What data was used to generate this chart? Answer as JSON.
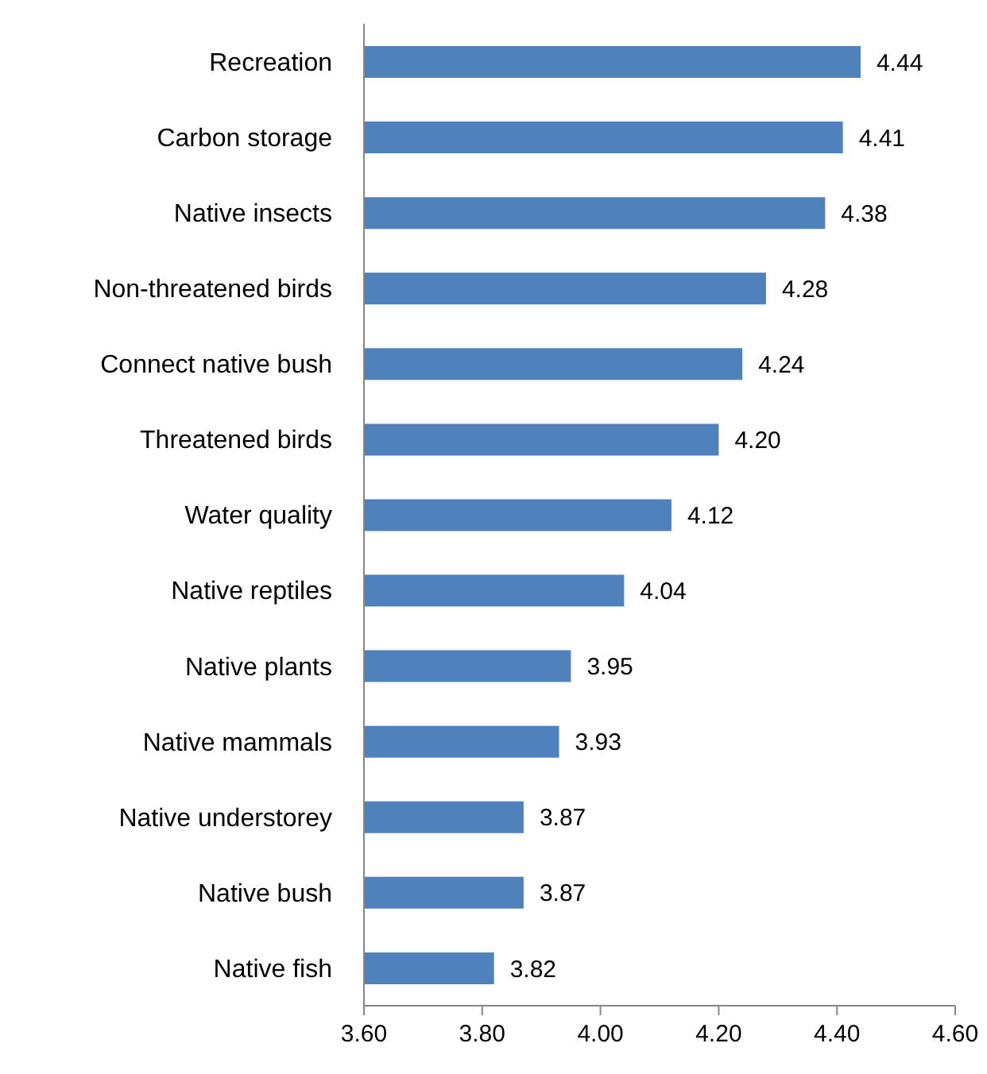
{
  "chart_data": {
    "type": "bar",
    "orientation": "horizontal",
    "categories": [
      "Recreation",
      "Carbon storage",
      "Native insects",
      "Non-threatened birds",
      "Connect native bush",
      "Threatened birds",
      "Water quality",
      "Native reptiles",
      "Native plants",
      "Native mammals",
      "Native understorey",
      "Native bush",
      "Native fish"
    ],
    "values": [
      4.44,
      4.41,
      4.38,
      4.28,
      4.24,
      4.2,
      4.12,
      4.04,
      3.95,
      3.93,
      3.87,
      3.87,
      3.82
    ],
    "value_labels": [
      "4.44",
      "4.41",
      "4.38",
      "4.28",
      "4.24",
      "4.20",
      "4.12",
      "4.04",
      "3.95",
      "3.93",
      "3.87",
      "3.87",
      "3.82"
    ],
    "color": "#4f81bd",
    "xlim": [
      3.6,
      4.6
    ],
    "xticks": [
      {
        "value": 3.6,
        "label": "3.60"
      },
      {
        "value": 3.8,
        "label": "3.80"
      },
      {
        "value": 4.0,
        "label": "4.00"
      },
      {
        "value": 4.2,
        "label": "4.20"
      },
      {
        "value": 4.4,
        "label": "4.40"
      },
      {
        "value": 4.6,
        "label": "4.60"
      }
    ],
    "grid": false,
    "legend": false
  }
}
